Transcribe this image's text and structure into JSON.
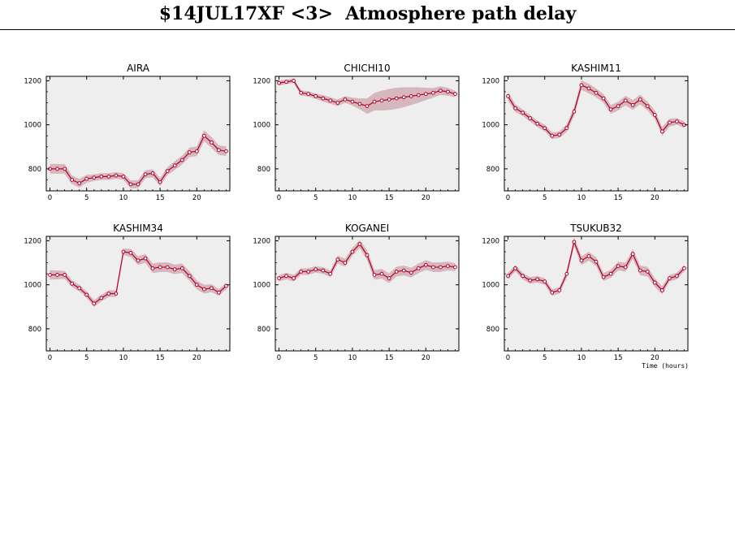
{
  "title": "$14JUL17XF <3>  Atmosphere path delay",
  "colors": {
    "plot_bg": "#efeeee",
    "line": "#b0002a",
    "band": "#d6b7bd",
    "frame": "#000000"
  },
  "chart_data": [
    {
      "type": "line",
      "title": "AIRA",
      "x": [
        0,
        1,
        2,
        3,
        4,
        5,
        6,
        7,
        8,
        9,
        10,
        11,
        12,
        13,
        14,
        15,
        16,
        17,
        18,
        19,
        20,
        21,
        22,
        23,
        24
      ],
      "ylim": [
        700,
        1220
      ],
      "xlim": [
        -0.5,
        24.5
      ],
      "yticks": [
        800,
        1000,
        1200
      ],
      "xticks": [
        0,
        5,
        10,
        15,
        20
      ],
      "series": [
        {
          "values": [
            800,
            800,
            800,
            750,
            735,
            755,
            760,
            765,
            765,
            770,
            765,
            730,
            730,
            775,
            780,
            740,
            790,
            815,
            840,
            875,
            880,
            950,
            920,
            885,
            880
          ],
          "band": [
            22,
            22,
            22,
            20,
            20,
            18,
            15,
            15,
            15,
            15,
            15,
            18,
            18,
            18,
            18,
            18,
            18,
            20,
            20,
            22,
            22,
            25,
            25,
            22,
            22
          ]
        }
      ]
    },
    {
      "type": "line",
      "title": "CHICHI10",
      "x": [
        0,
        1,
        2,
        3,
        4,
        5,
        6,
        7,
        8,
        9,
        10,
        11,
        12,
        13,
        14,
        15,
        16,
        17,
        18,
        19,
        20,
        21,
        22,
        23,
        24
      ],
      "ylim": [
        700,
        1220
      ],
      "xlim": [
        -0.5,
        24.5
      ],
      "yticks": [
        800,
        1000,
        1200
      ],
      "xticks": [
        0,
        5,
        10,
        15,
        20
      ],
      "series": [
        {
          "values": [
            1190,
            1195,
            1200,
            1145,
            1140,
            1130,
            1120,
            1110,
            1100,
            1115,
            1105,
            1095,
            1085,
            1105,
            1110,
            1115,
            1120,
            1125,
            1130,
            1135,
            1140,
            1145,
            1155,
            1150,
            1140
          ],
          "band": [
            12,
            10,
            10,
            12,
            12,
            12,
            15,
            15,
            15,
            15,
            18,
            25,
            35,
            40,
            45,
            48,
            48,
            45,
            40,
            35,
            28,
            22,
            20,
            18,
            15
          ]
        }
      ]
    },
    {
      "type": "line",
      "title": "KASHIM11",
      "x": [
        0,
        1,
        2,
        3,
        4,
        5,
        6,
        7,
        8,
        9,
        10,
        11,
        12,
        13,
        14,
        15,
        16,
        17,
        18,
        19,
        20,
        21,
        22,
        23,
        24
      ],
      "ylim": [
        700,
        1220
      ],
      "xlim": [
        -0.5,
        24.5
      ],
      "yticks": [
        800,
        1000,
        1200
      ],
      "xticks": [
        0,
        5,
        10,
        15,
        20
      ],
      "series": [
        {
          "values": [
            1130,
            1075,
            1055,
            1030,
            1005,
            985,
            950,
            955,
            985,
            1060,
            1180,
            1165,
            1145,
            1120,
            1070,
            1085,
            1110,
            1090,
            1115,
            1085,
            1045,
            970,
            1010,
            1015,
            1000
          ],
          "band": [
            20,
            18,
            15,
            15,
            15,
            15,
            15,
            15,
            18,
            20,
            22,
            22,
            20,
            20,
            20,
            20,
            22,
            22,
            22,
            20,
            20,
            20,
            18,
            15,
            15
          ]
        }
      ]
    },
    {
      "type": "line",
      "title": "KASHIM34",
      "x": [
        0,
        1,
        2,
        3,
        4,
        5,
        6,
        7,
        8,
        9,
        10,
        11,
        12,
        13,
        14,
        15,
        16,
        17,
        18,
        19,
        20,
        21,
        22,
        23,
        24
      ],
      "ylim": [
        700,
        1220
      ],
      "xlim": [
        -0.5,
        24.5
      ],
      "yticks": [
        800,
        1000,
        1200
      ],
      "xticks": [
        0,
        5,
        10,
        15,
        20
      ],
      "series": [
        {
          "values": [
            1045,
            1045,
            1045,
            1005,
            985,
            955,
            915,
            940,
            960,
            960,
            1150,
            1145,
            1110,
            1120,
            1075,
            1080,
            1080,
            1070,
            1075,
            1040,
            1000,
            980,
            985,
            965,
            995
          ],
          "band": [
            22,
            20,
            18,
            15,
            15,
            15,
            15,
            15,
            15,
            15,
            15,
            18,
            20,
            20,
            22,
            22,
            22,
            22,
            22,
            22,
            20,
            20,
            18,
            15,
            15
          ]
        }
      ]
    },
    {
      "type": "line",
      "title": "KOGANEI",
      "x": [
        0,
        1,
        2,
        3,
        4,
        5,
        6,
        7,
        8,
        9,
        10,
        11,
        12,
        13,
        14,
        15,
        16,
        17,
        18,
        19,
        20,
        21,
        22,
        23,
        24
      ],
      "ylim": [
        700,
        1220
      ],
      "xlim": [
        -0.5,
        24.5
      ],
      "yticks": [
        800,
        1000,
        1200
      ],
      "xticks": [
        0,
        5,
        10,
        15,
        20
      ],
      "series": [
        {
          "values": [
            1030,
            1040,
            1030,
            1060,
            1060,
            1070,
            1065,
            1050,
            1115,
            1100,
            1150,
            1185,
            1135,
            1045,
            1050,
            1030,
            1060,
            1065,
            1055,
            1075,
            1090,
            1080,
            1080,
            1085,
            1080
          ],
          "band": [
            15,
            15,
            15,
            15,
            15,
            15,
            15,
            15,
            18,
            18,
            18,
            18,
            22,
            22,
            22,
            22,
            22,
            22,
            22,
            22,
            22,
            22,
            22,
            20,
            18
          ]
        }
      ]
    },
    {
      "type": "line",
      "title": "TSUKUB32",
      "xlabel": "Time (hours)",
      "x": [
        0,
        1,
        2,
        3,
        4,
        5,
        6,
        7,
        8,
        9,
        10,
        11,
        12,
        13,
        14,
        15,
        16,
        17,
        18,
        19,
        20,
        21,
        22,
        23,
        24
      ],
      "ylim": [
        700,
        1220
      ],
      "xlim": [
        -0.5,
        24.5
      ],
      "yticks": [
        800,
        1000,
        1200
      ],
      "xticks": [
        0,
        5,
        10,
        15,
        20
      ],
      "series": [
        {
          "values": [
            1040,
            1075,
            1040,
            1020,
            1025,
            1015,
            965,
            975,
            1050,
            1195,
            1110,
            1130,
            1105,
            1035,
            1050,
            1085,
            1080,
            1140,
            1065,
            1060,
            1010,
            975,
            1030,
            1040,
            1075
          ],
          "band": [
            15,
            15,
            15,
            15,
            15,
            15,
            15,
            15,
            18,
            20,
            20,
            20,
            20,
            18,
            18,
            20,
            20,
            22,
            22,
            22,
            20,
            18,
            15,
            15,
            15
          ]
        }
      ]
    }
  ]
}
